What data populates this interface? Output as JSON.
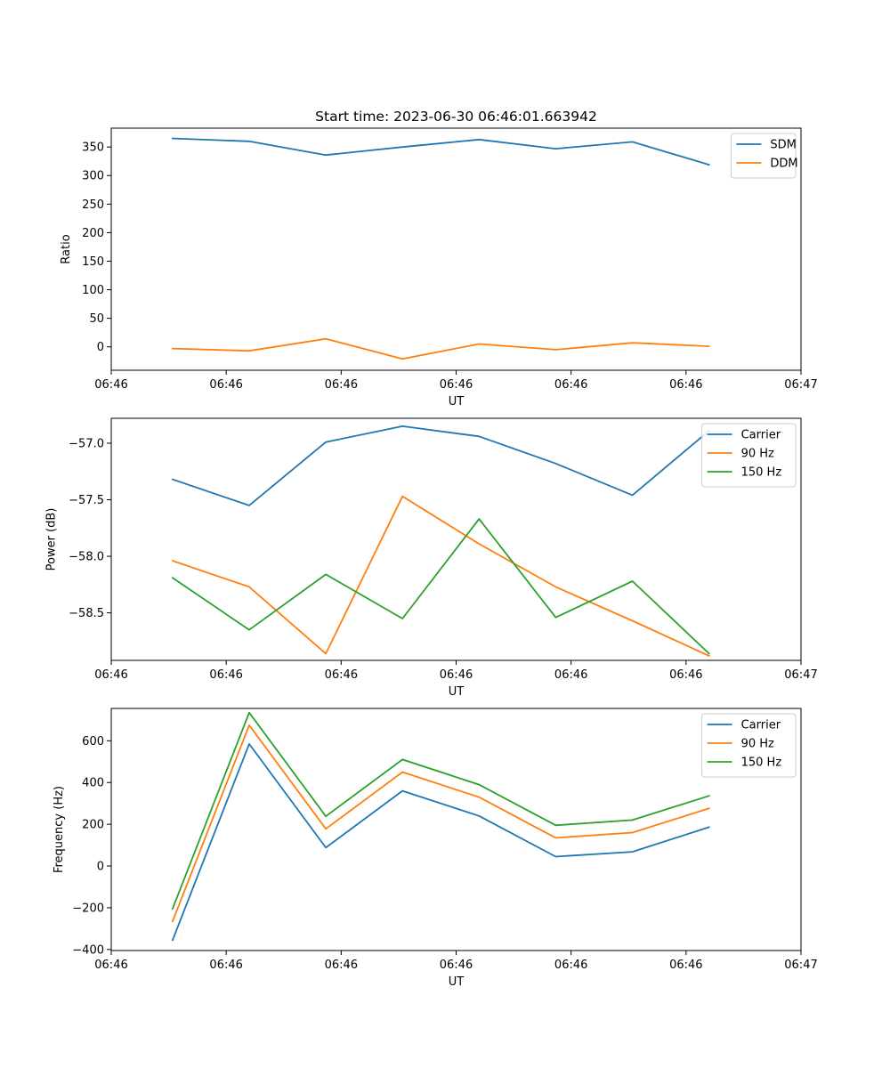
{
  "figure": {
    "title": "Start time: 2023-06-30 06:46:01.663942"
  },
  "chart_data": [
    {
      "type": "line",
      "xlabel": "UT",
      "ylabel": "Ratio",
      "x": [
        1,
        2,
        3,
        4,
        5,
        6,
        7,
        8
      ],
      "xlim": [
        0.2,
        9.2
      ],
      "xticks": [
        0.2,
        1.7,
        3.2,
        4.7,
        6.2,
        7.7,
        9.2
      ],
      "xtick_labels": [
        "06:46",
        "06:46",
        "06:46",
        "06:46",
        "06:46",
        "06:46",
        "06:47"
      ],
      "ylim": [
        -41,
        383
      ],
      "yticks": [
        0,
        50,
        100,
        150,
        200,
        250,
        300,
        350
      ],
      "ytick_labels": [
        "0",
        "50",
        "100",
        "150",
        "200",
        "250",
        "300",
        "350"
      ],
      "legend": "top-right",
      "series": [
        {
          "name": "SDM",
          "color": "#1f77b4",
          "values": [
            365,
            360,
            336,
            350,
            363,
            347,
            359,
            319
          ]
        },
        {
          "name": "DDM",
          "color": "#ff7f0e",
          "values": [
            -3,
            -7,
            14,
            -21,
            5,
            -5,
            7,
            1
          ]
        }
      ]
    },
    {
      "type": "line",
      "xlabel": "UT",
      "ylabel": "Power (dB)",
      "x": [
        1,
        2,
        3,
        4,
        5,
        6,
        7,
        8
      ],
      "xlim": [
        0.2,
        9.2
      ],
      "xticks": [
        0.2,
        1.7,
        3.2,
        4.7,
        6.2,
        7.7,
        9.2
      ],
      "xtick_labels": [
        "06:46",
        "06:46",
        "06:46",
        "06:46",
        "06:46",
        "06:46",
        "06:47"
      ],
      "ylim": [
        -58.92,
        -56.78
      ],
      "yticks": [
        -58.5,
        -58.0,
        -57.5,
        -57.0
      ],
      "ytick_labels": [
        "−58.5",
        "−58.0",
        "−57.5",
        "−57.0"
      ],
      "legend": "top-right",
      "series": [
        {
          "name": "Carrier",
          "color": "#1f77b4",
          "values": [
            -57.32,
            -57.55,
            -56.99,
            -56.85,
            -56.94,
            -57.18,
            -57.46,
            -56.89
          ]
        },
        {
          "name": "90 Hz",
          "color": "#ff7f0e",
          "values": [
            -58.04,
            -58.27,
            -58.86,
            -57.47,
            -57.89,
            -58.27,
            -58.57,
            -58.88
          ]
        },
        {
          "name": "150 Hz",
          "color": "#2ca02c",
          "values": [
            -58.19,
            -58.65,
            -58.16,
            -58.55,
            -57.67,
            -58.54,
            -58.22,
            -58.86
          ]
        }
      ]
    },
    {
      "type": "line",
      "xlabel": "UT",
      "ylabel": "Frequency (Hz)",
      "x": [
        1,
        2,
        3,
        4,
        5,
        6,
        7,
        8
      ],
      "xlim": [
        0.2,
        9.2
      ],
      "xticks": [
        0.2,
        1.7,
        3.2,
        4.7,
        6.2,
        7.7,
        9.2
      ],
      "xtick_labels": [
        "06:46",
        "06:46",
        "06:46",
        "06:46",
        "06:46",
        "06:46",
        "06:47"
      ],
      "ylim": [
        -405,
        755
      ],
      "yticks": [
        -400,
        -200,
        0,
        200,
        400,
        600
      ],
      "ytick_labels": [
        "−400",
        "−200",
        "0",
        "200",
        "400",
        "600"
      ],
      "legend": "top-right",
      "series": [
        {
          "name": "Carrier",
          "color": "#1f77b4",
          "values": [
            -355,
            585,
            88,
            360,
            240,
            45,
            68,
            186
          ]
        },
        {
          "name": "90 Hz",
          "color": "#ff7f0e",
          "values": [
            -265,
            675,
            178,
            450,
            330,
            135,
            160,
            276
          ]
        },
        {
          "name": "150 Hz",
          "color": "#2ca02c",
          "values": [
            -205,
            735,
            238,
            510,
            390,
            195,
            220,
            336
          ]
        }
      ]
    }
  ]
}
